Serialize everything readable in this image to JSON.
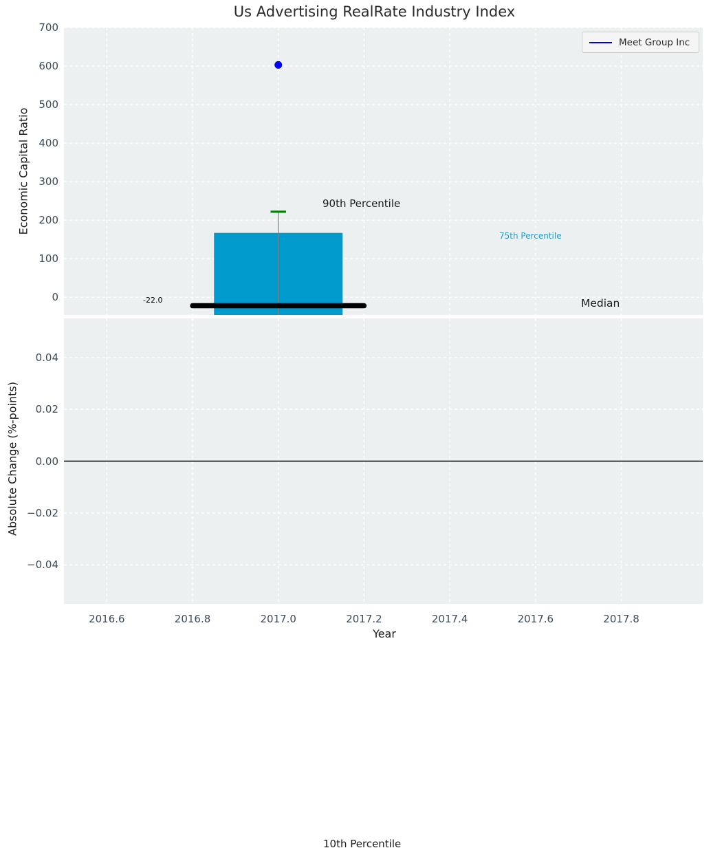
{
  "figure": {
    "title": "Us Advertising RealRate Industry Index",
    "background": "#ffffff",
    "plot_background": "#ecf0f1",
    "grid_color": "#ffffff",
    "tick_label_color": "#3c4a57"
  },
  "legend": {
    "label": "Meet Group Inc",
    "line_color": "#0000e0",
    "position": "upper right"
  },
  "annotations": {
    "p90": "90th Percentile",
    "p75": "75th Percentile",
    "median": "Median",
    "median_value": "-22.0",
    "p10": "10th Percentile"
  },
  "chart_data": [
    {
      "type": "bar",
      "subplot": "top",
      "title": "Us Advertising RealRate Industry Index",
      "xlabel": "",
      "ylabel": "Economic Capital Ratio",
      "xlim": [
        2016.5,
        2017.99
      ],
      "ylim": [
        -46,
        700
      ],
      "xticks": [
        2016.6,
        2016.8,
        2017.0,
        2017.2,
        2017.4,
        2017.6,
        2017.8
      ],
      "yticks": [
        0,
        100,
        200,
        300,
        400,
        500,
        600,
        700
      ],
      "ytick_labels": [
        "0",
        "100",
        "200",
        "300",
        "400",
        "500",
        "600",
        "700"
      ],
      "grid": true,
      "grid_style": "white dashed on light gray",
      "bar": {
        "x": 2017.0,
        "width": 0.3,
        "top": 167,
        "bottom": "clipped below axis",
        "color": "#009acd"
      },
      "percentiles": {
        "p90": 222,
        "p75": 167,
        "median": -22.0,
        "p10": "off-scale below axis"
      },
      "whisker": {
        "x": 2017.0,
        "cap_y": 222,
        "cap_halfwidth": 0.018,
        "cap_color": "#008000",
        "line_color": "#808080"
      },
      "median_line": {
        "y": -22.0,
        "x_start": 2016.8,
        "x_end": 2017.2,
        "color": "#000000",
        "value_label": "-22.0"
      },
      "series": [
        {
          "name": "Meet Group Inc",
          "type": "scatter",
          "marker_color": "#0000ff",
          "points": [
            {
              "x": 2017.0,
              "y": 603
            }
          ]
        }
      ]
    },
    {
      "type": "line",
      "subplot": "bottom",
      "xlabel": "Year",
      "ylabel": "Absolute Change (%-points)",
      "xlim": [
        2016.5,
        2017.99
      ],
      "ylim": [
        -0.055,
        0.055
      ],
      "xticks": [
        2016.6,
        2016.8,
        2017.0,
        2017.2,
        2017.4,
        2017.6,
        2017.8
      ],
      "xtick_labels": [
        "2016.6",
        "2016.8",
        "2017.0",
        "2017.2",
        "2017.4",
        "2017.6",
        "2017.8"
      ],
      "yticks": [
        -0.04,
        -0.02,
        0.0,
        0.02,
        0.04
      ],
      "ytick_labels": [
        "−0.04",
        "−0.02",
        "0.00",
        "0.02",
        "0.04"
      ],
      "grid": true,
      "zero_line": {
        "y": 0.0,
        "color": "#000000"
      },
      "series": []
    }
  ]
}
